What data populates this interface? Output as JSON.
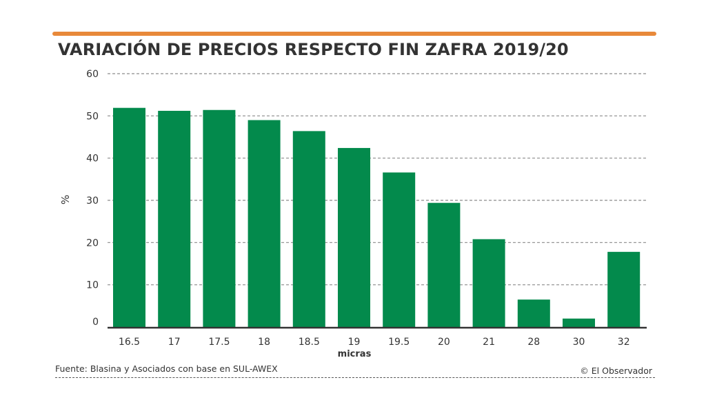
{
  "chart_data": {
    "type": "bar",
    "title": "VARIACIÓN DE PRECIOS RESPECTO FIN ZAFRA 2019/20",
    "xlabel": "micras",
    "ylabel": "%",
    "categories": [
      "16.5",
      "17",
      "17.5",
      "18",
      "18.5",
      "19",
      "19.5",
      "20",
      "21",
      "28",
      "30",
      "32"
    ],
    "values": [
      51.9,
      51.2,
      51.4,
      49.0,
      46.4,
      42.4,
      36.6,
      29.4,
      20.8,
      6.5,
      2.0,
      17.8
    ],
    "yticks": [
      "0",
      "10",
      "20",
      "30",
      "40",
      "50",
      "60"
    ],
    "ylim": [
      0,
      60
    ],
    "grid": true,
    "bar_color": "#038a4c"
  },
  "footer": {
    "source": "Fuente: Blasina y Asociados con base en SUL-AWEX",
    "credit": "© El Observador"
  },
  "colors": {
    "accent": "#e8893a",
    "bar": "#038a4c",
    "text": "#333333"
  }
}
